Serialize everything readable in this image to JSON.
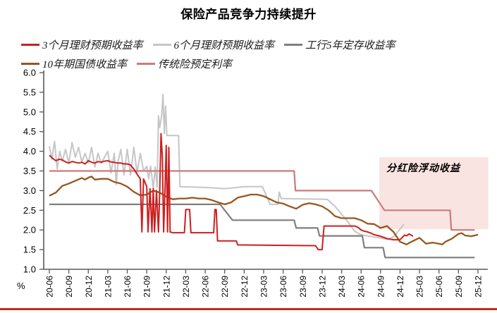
{
  "title": "保险产品竞争力持续提升",
  "y_unit_label": "%",
  "annotation_label": "分红险浮动收益",
  "colors": {
    "red": "#CC2020",
    "light_gray": "#C6C6C6",
    "dark_gray": "#7F7F7F",
    "brown": "#96571E",
    "pink": "#CC7A7A",
    "annotation_fill": "#FAE4E2",
    "bottom_rule": "#C22B20",
    "axis": "#595959"
  },
  "legend": {
    "rows": [
      [
        {
          "label": "3个月理财预期收益率",
          "color": "#CC2020"
        },
        {
          "label": "6个月理财预期收益率",
          "color": "#C6C6C6"
        },
        {
          "label": "工行5年定存收益率",
          "color": "#7F7F7F"
        }
      ],
      [
        {
          "label": "10年期国债收益率",
          "color": "#96571E"
        },
        {
          "label": "传统险预定利率",
          "color": "#CC7A7A"
        }
      ]
    ]
  },
  "chart_data": {
    "type": "line",
    "title": "保险产品竞争力持续提升",
    "xlabel": "",
    "ylabel": "%",
    "x_axis": {
      "start": "2020-06",
      "end": "2025-12",
      "months_per_tick": 3,
      "tick_labels": [
        "20-06",
        "20-09",
        "20-12",
        "21-03",
        "21-06",
        "21-09",
        "21-12",
        "22-03",
        "22-06",
        "22-09",
        "22-12",
        "23-03",
        "23-06",
        "23-09",
        "23-12",
        "24-03",
        "24-06",
        "24-09",
        "24-12",
        "25-03",
        "25-06",
        "25-09",
        "25-12"
      ]
    },
    "y_axis": {
      "min": 1.0,
      "max": 6.0,
      "step": 0.5,
      "unit": "%"
    },
    "grid": false,
    "legend_position": "top-left",
    "series": [
      {
        "id": "wmp-6m",
        "name": "6个月理财预期收益率",
        "color": "#C6C6C6",
        "width": 2,
        "points": [
          [
            0,
            4.13
          ],
          [
            0.4,
            3.8
          ],
          [
            0.8,
            4.25
          ],
          [
            1.2,
            3.55
          ],
          [
            1.6,
            4.0
          ],
          [
            2,
            3.75
          ],
          [
            2.5,
            4.05
          ],
          [
            3,
            3.7
          ],
          [
            3.5,
            4.22
          ],
          [
            4,
            3.85
          ],
          [
            4.5,
            4.1
          ],
          [
            5,
            3.72
          ],
          [
            5.5,
            3.95
          ],
          [
            6,
            3.7
          ],
          [
            6.5,
            4.1
          ],
          [
            7,
            3.6
          ],
          [
            7.5,
            3.95
          ],
          [
            8,
            3.7
          ],
          [
            8.5,
            3.85
          ],
          [
            9,
            4.0
          ],
          [
            9.5,
            3.45
          ],
          [
            10,
            3.95
          ],
          [
            10.3,
            3.15
          ],
          [
            10.6,
            3.75
          ],
          [
            11,
            4.05
          ],
          [
            11.5,
            3.4
          ],
          [
            12,
            4.05
          ],
          [
            12.5,
            3.4
          ],
          [
            13,
            4.1
          ],
          [
            13.5,
            3.45
          ],
          [
            14,
            3.95
          ],
          [
            14.5,
            3.5
          ],
          [
            15,
            3.62
          ],
          [
            15.3,
            3.3
          ],
          [
            15.6,
            3.62
          ],
          [
            16,
            3.05
          ],
          [
            16.3,
            3.6
          ],
          [
            16.6,
            3.08
          ],
          [
            16.8,
            4.9
          ],
          [
            17,
            4.6
          ],
          [
            17.3,
            4.92
          ],
          [
            17.5,
            5.45
          ],
          [
            17.7,
            4.45
          ],
          [
            17.9,
            5.15
          ],
          [
            18.1,
            4.4
          ],
          [
            19.9,
            4.4
          ],
          [
            20.1,
            3.1
          ],
          [
            24,
            3.08
          ],
          [
            27,
            3.05
          ],
          [
            29,
            3.08
          ],
          [
            30,
            3.1
          ],
          [
            32.8,
            3.1
          ],
          [
            34,
            2.65
          ],
          [
            35.2,
            2.65
          ],
          [
            35.4,
            2.96
          ],
          [
            35.7,
            2.8
          ],
          [
            42.8,
            2.78
          ],
          [
            44,
            2.6
          ],
          [
            45,
            2.4
          ],
          [
            46,
            2.2
          ],
          [
            47,
            1.97
          ],
          [
            47.5,
            1.92
          ],
          [
            48,
            1.88
          ],
          [
            49,
            1.85
          ],
          [
            50,
            1.82
          ],
          [
            51,
            1.8
          ],
          [
            52,
            1.76
          ],
          [
            53,
            1.82
          ],
          [
            54,
            2.02
          ],
          [
            54.6,
            2.15
          ]
        ]
      },
      {
        "id": "icbc-5y-deposit",
        "name": "工行5年定存收益率",
        "color": "#7F7F7F",
        "width": 2.2,
        "points": [
          [
            0,
            2.65
          ],
          [
            26.3,
            2.65
          ],
          [
            28.2,
            2.25
          ],
          [
            37.7,
            2.25
          ],
          [
            38,
            2.05
          ],
          [
            41.3,
            2.05
          ],
          [
            41.6,
            1.85
          ],
          [
            48.2,
            1.85
          ],
          [
            48.5,
            1.55
          ],
          [
            51.4,
            1.55
          ],
          [
            51.7,
            1.3
          ],
          [
            65.5,
            1.3
          ]
        ]
      },
      {
        "id": "cgb-10y",
        "name": "10年期国债收益率",
        "color": "#96571E",
        "width": 2.3,
        "points": [
          [
            0,
            2.87
          ],
          [
            1,
            2.95
          ],
          [
            2,
            3.12
          ],
          [
            3,
            3.18
          ],
          [
            4,
            3.25
          ],
          [
            5,
            3.32
          ],
          [
            5.5,
            3.28
          ],
          [
            6,
            3.33
          ],
          [
            6.5,
            3.36
          ],
          [
            7,
            3.28
          ],
          [
            8,
            3.3
          ],
          [
            9,
            3.3
          ],
          [
            10,
            3.22
          ],
          [
            11,
            3.18
          ],
          [
            12,
            3.1
          ],
          [
            13,
            2.97
          ],
          [
            14,
            2.88
          ],
          [
            15,
            2.9
          ],
          [
            16,
            3.0
          ],
          [
            17,
            2.95
          ],
          [
            18,
            2.85
          ],
          [
            19,
            2.78
          ],
          [
            20,
            2.8
          ],
          [
            21,
            2.8
          ],
          [
            22,
            2.82
          ],
          [
            23,
            2.8
          ],
          [
            24,
            2.8
          ],
          [
            25,
            2.76
          ],
          [
            26,
            2.7
          ],
          [
            27,
            2.65
          ],
          [
            28,
            2.7
          ],
          [
            29,
            2.82
          ],
          [
            30,
            2.86
          ],
          [
            31,
            2.9
          ],
          [
            32,
            2.9
          ],
          [
            33,
            2.86
          ],
          [
            34,
            2.78
          ],
          [
            35,
            2.7
          ],
          [
            36,
            2.67
          ],
          [
            37,
            2.6
          ],
          [
            38,
            2.54
          ],
          [
            39,
            2.64
          ],
          [
            40,
            2.68
          ],
          [
            41,
            2.65
          ],
          [
            42,
            2.6
          ],
          [
            43,
            2.5
          ],
          [
            44,
            2.35
          ],
          [
            45,
            2.3
          ],
          [
            46,
            2.3
          ],
          [
            47,
            2.3
          ],
          [
            48,
            2.25
          ],
          [
            49,
            2.16
          ],
          [
            50,
            2.15
          ],
          [
            51,
            2.05
          ],
          [
            52,
            2.1
          ],
          [
            53,
            1.95
          ],
          [
            54,
            1.7
          ],
          [
            55,
            1.63
          ],
          [
            55.5,
            1.68
          ],
          [
            56,
            1.72
          ],
          [
            57,
            1.8
          ],
          [
            58,
            1.65
          ],
          [
            59,
            1.68
          ],
          [
            60,
            1.65
          ],
          [
            60.5,
            1.63
          ],
          [
            61,
            1.7
          ],
          [
            62,
            1.78
          ],
          [
            62.5,
            1.84
          ],
          [
            63,
            1.9
          ],
          [
            63.5,
            1.92
          ],
          [
            64,
            1.86
          ],
          [
            65,
            1.84
          ],
          [
            66,
            1.88
          ]
        ]
      },
      {
        "id": "traditional-insurance-rate",
        "name": "传统险预定利率",
        "color": "#CC7A7A",
        "width": 2.2,
        "points": [
          [
            0,
            3.5
          ],
          [
            37.7,
            3.5
          ],
          [
            37.9,
            3.0
          ],
          [
            49.6,
            3.0
          ],
          [
            51.6,
            2.5
          ],
          [
            61.7,
            2.5
          ],
          [
            61.9,
            2.0
          ],
          [
            65.5,
            2.0
          ]
        ]
      },
      {
        "id": "wmp-3m",
        "name": "3个月理财预期收益率",
        "color": "#CC2020",
        "width": 2,
        "points": [
          [
            0,
            3.9
          ],
          [
            0.5,
            3.82
          ],
          [
            1,
            3.76
          ],
          [
            1.5,
            3.8
          ],
          [
            2,
            3.78
          ],
          [
            2.5,
            3.73
          ],
          [
            3,
            3.7
          ],
          [
            3.5,
            3.74
          ],
          [
            4,
            3.72
          ],
          [
            4.5,
            3.7
          ],
          [
            5,
            3.72
          ],
          [
            5.5,
            3.68
          ],
          [
            6,
            3.76
          ],
          [
            6.5,
            3.72
          ],
          [
            7,
            3.7
          ],
          [
            7.5,
            3.74
          ],
          [
            8,
            3.72
          ],
          [
            8.5,
            3.75
          ],
          [
            9,
            3.76
          ],
          [
            9.5,
            3.73
          ],
          [
            10,
            3.72
          ],
          [
            10.5,
            3.7
          ],
          [
            11,
            3.7
          ],
          [
            11.5,
            3.68
          ],
          [
            12,
            3.68
          ],
          [
            12.5,
            3.65
          ],
          [
            13,
            3.55
          ],
          [
            13.5,
            3.42
          ],
          [
            14,
            3.3
          ],
          [
            14.25,
            1.95
          ],
          [
            14.5,
            3.3
          ],
          [
            15,
            3.1
          ],
          [
            15.2,
            1.95
          ],
          [
            15.5,
            3.05
          ],
          [
            15.8,
            1.95
          ],
          [
            16,
            3.05
          ],
          [
            16.2,
            1.95
          ],
          [
            16.5,
            3.0
          ],
          [
            16.8,
            1.95
          ],
          [
            17,
            3.0
          ],
          [
            17.2,
            4.45
          ],
          [
            17.4,
            3.85
          ],
          [
            17.6,
            1.95
          ],
          [
            17.8,
            3.0
          ],
          [
            18,
            4.15
          ],
          [
            18.2,
            1.95
          ],
          [
            18.4,
            4.1
          ],
          [
            18.6,
            1.95
          ],
          [
            19,
            1.93
          ],
          [
            20.8,
            1.93
          ],
          [
            21,
            2.52
          ],
          [
            21.6,
            2.52
          ],
          [
            21.8,
            1.93
          ],
          [
            25.3,
            1.93
          ],
          [
            25.5,
            2.52
          ],
          [
            25.7,
            2.52
          ],
          [
            25.9,
            1.72
          ],
          [
            28.8,
            1.72
          ],
          [
            29,
            1.62
          ],
          [
            41,
            1.6
          ],
          [
            41.4,
            1.5
          ],
          [
            42,
            1.5
          ],
          [
            42.3,
            2.1
          ],
          [
            47,
            2.1
          ],
          [
            47.5,
            2.07
          ],
          [
            48,
            2.0
          ],
          [
            48.5,
            1.97
          ],
          [
            49,
            1.95
          ],
          [
            49.5,
            1.92
          ],
          [
            50,
            1.88
          ],
          [
            51,
            1.84
          ],
          [
            52,
            1.78
          ],
          [
            53,
            1.75
          ],
          [
            54,
            1.75
          ],
          [
            54.7,
            1.87
          ],
          [
            55,
            1.85
          ],
          [
            55.4,
            1.9
          ],
          [
            56,
            1.84
          ]
        ]
      }
    ],
    "annotation_box": {
      "label": "分红险浮动收益",
      "month_from": 50.8,
      "month_to": 67.6,
      "value_top": 3.85,
      "value_bottom": 2.02,
      "fill": "#FAE4E2"
    }
  }
}
